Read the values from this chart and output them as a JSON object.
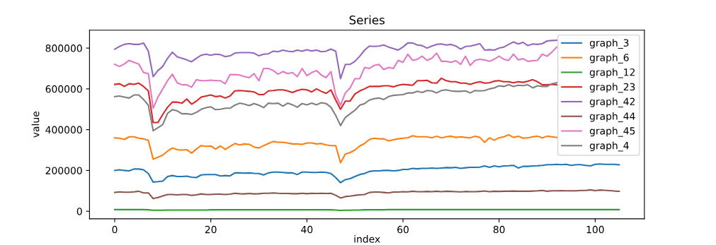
{
  "chart_data": {
    "type": "line",
    "title": "Series",
    "xlabel": "index",
    "ylabel": "value",
    "x": [
      0,
      1,
      2,
      3,
      4,
      5,
      6,
      7,
      8,
      9,
      10,
      11,
      12,
      13,
      14,
      15,
      16,
      17,
      18,
      19,
      20,
      21,
      22,
      23,
      24,
      25,
      26,
      27,
      28,
      29,
      30,
      31,
      32,
      33,
      34,
      35,
      36,
      37,
      38,
      39,
      40,
      41,
      42,
      43,
      44,
      45,
      46,
      47,
      48,
      49,
      50,
      51,
      52,
      53,
      54,
      55,
      56,
      57,
      58,
      59,
      60,
      61,
      62,
      63,
      64,
      65,
      66,
      67,
      68,
      69,
      70,
      71,
      72,
      73,
      74,
      75,
      76,
      77,
      78,
      79,
      80,
      81,
      82,
      83,
      84,
      85,
      86,
      87,
      88,
      89,
      90,
      91,
      92,
      93,
      94,
      95,
      96,
      97,
      98,
      99,
      100,
      101,
      102,
      103,
      104,
      105
    ],
    "xlim": [
      -5.25,
      110.25
    ],
    "xticks": [
      0,
      20,
      40,
      60,
      80,
      100
    ],
    "ylim": [
      -37000,
      888000
    ],
    "yticks": [
      0,
      200000,
      400000,
      600000,
      800000
    ],
    "grid": false,
    "legend": "top right",
    "series": [
      {
        "name": "graph_3",
        "color": "#1f77b4",
        "values": [
          200000,
          203000,
          200000,
          198000,
          207000,
          207000,
          203000,
          185000,
          143000,
          145000,
          148000,
          170000,
          175000,
          170000,
          170000,
          172000,
          167000,
          165000,
          178000,
          180000,
          180000,
          180000,
          173000,
          175000,
          173000,
          188000,
          188000,
          187000,
          188000,
          186000,
          185000,
          178000,
          188000,
          192000,
          192000,
          190000,
          188000,
          188000,
          180000,
          192000,
          192000,
          190000,
          190000,
          192000,
          190000,
          185000,
          165000,
          140000,
          155000,
          160000,
          170000,
          180000,
          185000,
          195000,
          198000,
          198000,
          200000,
          200000,
          198000,
          200000,
          205000,
          205000,
          210000,
          208000,
          210000,
          210000,
          212000,
          210000,
          212000,
          214000,
          213000,
          215000,
          210000,
          213000,
          215000,
          215000,
          216000,
          222000,
          215000,
          222000,
          218000,
          222000,
          223000,
          225000,
          212000,
          220000,
          220000,
          222000,
          223000,
          225000,
          228000,
          228000,
          230000,
          228000,
          230000,
          225000,
          228000,
          228000,
          225000,
          222000,
          230000,
          232000,
          230000,
          230000,
          230000,
          228000
        ]
      },
      {
        "name": "graph_6",
        "color": "#ff7f0e",
        "values": [
          360000,
          358000,
          352000,
          365000,
          365000,
          358000,
          355000,
          348000,
          255000,
          265000,
          275000,
          295000,
          310000,
          302000,
          300000,
          302000,
          285000,
          305000,
          322000,
          318000,
          320000,
          305000,
          320000,
          303000,
          318000,
          332000,
          325000,
          330000,
          328000,
          315000,
          310000,
          322000,
          332000,
          342000,
          338000,
          338000,
          335000,
          330000,
          330000,
          328000,
          335000,
          335000,
          330000,
          332000,
          325000,
          322000,
          322000,
          238000,
          280000,
          288000,
          300000,
          320000,
          332000,
          352000,
          358000,
          355000,
          355000,
          345000,
          350000,
          355000,
          358000,
          360000,
          370000,
          365000,
          365000,
          365000,
          360000,
          368000,
          360000,
          365000,
          368000,
          362000,
          365000,
          362000,
          360000,
          368000,
          362000,
          338000,
          360000,
          348000,
          360000,
          365000,
          375000,
          362000,
          368000,
          358000,
          360000,
          365000,
          368000,
          360000,
          368000,
          365000,
          362000,
          null,
          null,
          null,
          null,
          null,
          null,
          null,
          null,
          null,
          null,
          null,
          null,
          null
        ]
      },
      {
        "name": "graph_12",
        "color": "#2ca02c",
        "values": [
          8000,
          8000,
          8000,
          8000,
          8000,
          8000,
          8000,
          7000,
          5000,
          5000,
          5000,
          6000,
          6000,
          6000,
          6000,
          6000,
          6000,
          6000,
          6000,
          6000,
          7000,
          7000,
          7000,
          7000,
          7000,
          7000,
          7000,
          7000,
          7000,
          7000,
          7000,
          7000,
          7000,
          7000,
          7000,
          7000,
          7000,
          7000,
          7000,
          7000,
          7000,
          7000,
          7000,
          7000,
          7000,
          7000,
          6000,
          4000,
          5000,
          5000,
          6000,
          6000,
          7000,
          7000,
          7000,
          7000,
          7000,
          8000,
          8000,
          8000,
          8000,
          8000,
          8000,
          8000,
          8000,
          8000,
          8000,
          8000,
          8000,
          8000,
          8000,
          8000,
          8000,
          8000,
          8000,
          8000,
          8000,
          8000,
          8000,
          8000,
          8000,
          8000,
          8000,
          8000,
          8000,
          8000,
          8000,
          8000,
          8000,
          8000,
          8000,
          8000,
          8000,
          8000,
          8000,
          8000,
          8000,
          8000,
          8000,
          8000,
          8000,
          8000,
          8000,
          8000,
          8000,
          8000
        ]
      },
      {
        "name": "graph_23",
        "color": "#d62728",
        "values": [
          622000,
          625000,
          612000,
          625000,
          622000,
          628000,
          612000,
          590000,
          435000,
          435000,
          475000,
          510000,
          535000,
          535000,
          530000,
          550000,
          525000,
          540000,
          560000,
          565000,
          570000,
          562000,
          565000,
          555000,
          565000,
          590000,
          592000,
          590000,
          588000,
          585000,
          572000,
          572000,
          590000,
          592000,
          595000,
          595000,
          590000,
          582000,
          592000,
          598000,
          595000,
          585000,
          600000,
          588000,
          578000,
          595000,
          545000,
          500000,
          540000,
          540000,
          575000,
          590000,
          600000,
          612000,
          612000,
          612000,
          615000,
          615000,
          610000,
          618000,
          622000,
          620000,
          618000,
          640000,
          640000,
          642000,
          630000,
          628000,
          652000,
          640000,
          635000,
          635000,
          628000,
          628000,
          622000,
          630000,
          635000,
          628000,
          630000,
          638000,
          640000,
          635000,
          635000,
          630000,
          635000,
          632000,
          638000,
          645000,
          635000,
          620000,
          620000,
          622000,
          620000,
          null,
          null,
          null,
          null,
          null,
          null,
          null,
          null,
          null,
          null,
          null,
          null,
          null
        ]
      },
      {
        "name": "graph_42",
        "color": "#9467bd",
        "values": [
          795000,
          808000,
          818000,
          822000,
          818000,
          818000,
          825000,
          785000,
          660000,
          690000,
          710000,
          750000,
          780000,
          757000,
          750000,
          742000,
          733000,
          750000,
          765000,
          770000,
          765000,
          770000,
          768000,
          758000,
          762000,
          775000,
          778000,
          778000,
          778000,
          775000,
          762000,
          770000,
          772000,
          785000,
          782000,
          790000,
          785000,
          782000,
          790000,
          785000,
          792000,
          786000,
          790000,
          782000,
          785000,
          795000,
          785000,
          650000,
          720000,
          720000,
          735000,
          760000,
          790000,
          810000,
          808000,
          810000,
          815000,
          805000,
          798000,
          790000,
          805000,
          825000,
          825000,
          815000,
          812000,
          800000,
          810000,
          818000,
          820000,
          815000,
          818000,
          810000,
          795000,
          808000,
          810000,
          815000,
          822000,
          790000,
          792000,
          790000,
          800000,
          805000,
          818000,
          830000,
          820000,
          828000,
          812000,
          820000,
          818000,
          822000,
          835000,
          837000,
          838000,
          null,
          null,
          null,
          null,
          null,
          null,
          null,
          null,
          null,
          null,
          null,
          null,
          null
        ]
      },
      {
        "name": "graph_44",
        "color": "#8c564b",
        "values": [
          92000,
          95000,
          93000,
          93000,
          95000,
          98000,
          90000,
          90000,
          62000,
          67000,
          75000,
          82000,
          82000,
          80000,
          82000,
          82000,
          78000,
          80000,
          85000,
          82000,
          82000,
          84000,
          84000,
          82000,
          84000,
          88000,
          86000,
          85000,
          87000,
          85000,
          86000,
          88000,
          88000,
          90000,
          88000,
          87000,
          87000,
          86000,
          86000,
          88000,
          86000,
          88000,
          87000,
          88000,
          87000,
          88000,
          78000,
          65000,
          72000,
          74000,
          78000,
          80000,
          82000,
          92000,
          94000,
          94000,
          92000,
          90000,
          94000,
          94000,
          96000,
          95000,
          98000,
          96000,
          96000,
          97000,
          96000,
          98000,
          96000,
          98000,
          97000,
          96000,
          95000,
          97000,
          96000,
          96000,
          97000,
          99000,
          96000,
          98000,
          97000,
          98000,
          98000,
          99000,
          98000,
          98000,
          98000,
          99000,
          100000,
          102000,
          98000,
          100000,
          100000,
          101000,
          100000,
          100000,
          100000,
          102000,
          102000,
          105000,
          101000,
          104000,
          103000,
          101000,
          99000,
          98000
        ]
      },
      {
        "name": "graph_45",
        "color": "#e377c2",
        "values": [
          720000,
          710000,
          722000,
          740000,
          730000,
          722000,
          680000,
          675000,
          505000,
          560000,
          600000,
          640000,
          672000,
          630000,
          620000,
          620000,
          608000,
          645000,
          640000,
          640000,
          643000,
          640000,
          640000,
          625000,
          670000,
          670000,
          668000,
          660000,
          655000,
          675000,
          640000,
          700000,
          700000,
          690000,
          672000,
          685000,
          675000,
          680000,
          660000,
          700000,
          665000,
          680000,
          690000,
          668000,
          655000,
          685000,
          570000,
          520000,
          580000,
          605000,
          650000,
          650000,
          705000,
          700000,
          715000,
          720000,
          695000,
          705000,
          700000,
          740000,
          730000,
          770000,
          740000,
          745000,
          760000,
          740000,
          750000,
          775000,
          735000,
          735000,
          730000,
          738000,
          720000,
          760000,
          715000,
          740000,
          745000,
          742000,
          735000,
          745000,
          760000,
          745000,
          740000,
          770000,
          742000,
          748000,
          735000,
          738000,
          740000,
          770000,
          760000,
          780000,
          805000,
          null,
          null,
          null,
          null,
          null,
          null,
          null,
          null,
          null,
          null,
          null,
          null,
          null
        ]
      },
      {
        "name": "graph_4",
        "color": "#7f7f7f",
        "values": [
          562000,
          565000,
          560000,
          555000,
          570000,
          570000,
          548000,
          520000,
          395000,
          410000,
          425000,
          480000,
          498000,
          492000,
          478000,
          478000,
          475000,
          485000,
          500000,
          508000,
          512000,
          498000,
          500000,
          505000,
          505000,
          520000,
          530000,
          525000,
          518000,
          528000,
          520000,
          508000,
          530000,
          528000,
          530000,
          515000,
          530000,
          522000,
          510000,
          528000,
          522000,
          530000,
          522000,
          532000,
          528000,
          510000,
          470000,
          420000,
          460000,
          478000,
          495000,
          520000,
          528000,
          545000,
          552000,
          555000,
          548000,
          562000,
          568000,
          570000,
          572000,
          580000,
          580000,
          588000,
          582000,
          592000,
          590000,
          580000,
          592000,
          595000,
          590000,
          588000,
          588000,
          590000,
          580000,
          592000,
          590000,
          592000,
          600000,
          605000,
          615000,
          612000,
          620000,
          612000,
          618000,
          616000,
          620000,
          605000,
          615000,
          612000,
          612000,
          625000,
          630000,
          null,
          null,
          null,
          null,
          null,
          null,
          null,
          null,
          null,
          null,
          null,
          null,
          null
        ]
      }
    ]
  }
}
